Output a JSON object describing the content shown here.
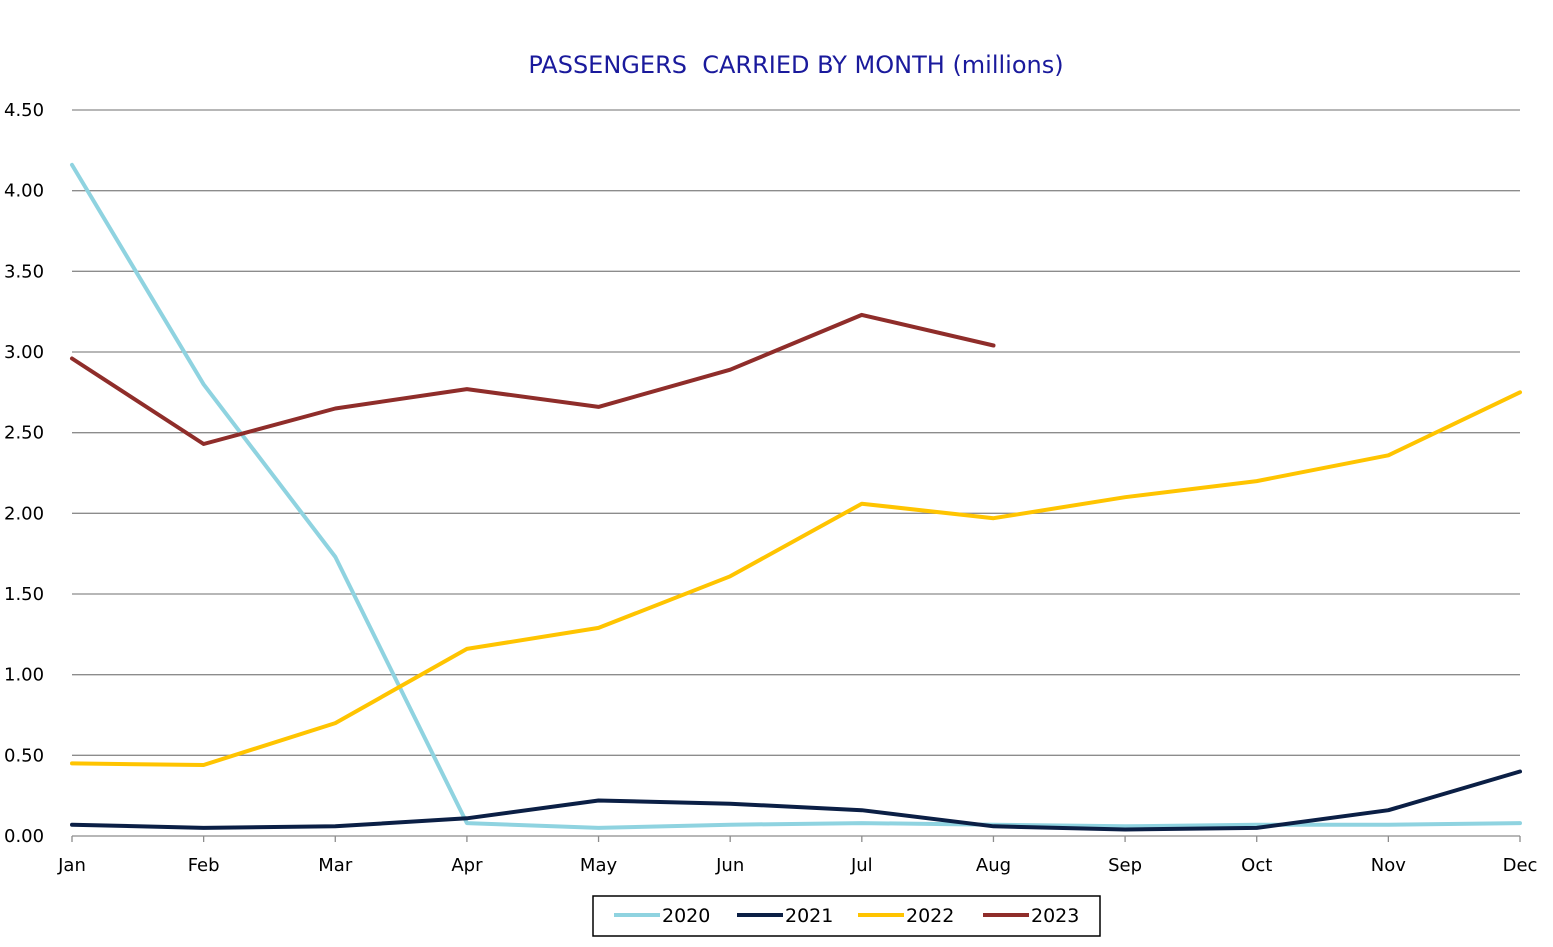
{
  "chart_data": {
    "type": "line",
    "title": "PASSENGERS  CARRIED BY MONTH (millions)",
    "xlabel": "",
    "ylabel": "",
    "categories": [
      "Jan",
      "Feb",
      "Mar",
      "Apr",
      "May",
      "Jun",
      "Jul",
      "Aug",
      "Sep",
      "Oct",
      "Nov",
      "Dec"
    ],
    "ylim": [
      0,
      4.5
    ],
    "yticks": [
      "0.00",
      "0.50",
      "1.00",
      "1.50",
      "2.00",
      "2.50",
      "3.00",
      "3.50",
      "4.00",
      "4.50"
    ],
    "grid": true,
    "legend_position": "bottom",
    "series": [
      {
        "name": "2020",
        "color": "#8fd3e0",
        "values": [
          4.16,
          2.8,
          1.73,
          0.08,
          0.05,
          0.07,
          0.08,
          0.07,
          0.06,
          0.07,
          0.07,
          0.08
        ]
      },
      {
        "name": "2021",
        "color": "#0b1f45",
        "values": [
          0.07,
          0.05,
          0.06,
          0.11,
          0.22,
          0.2,
          0.16,
          0.06,
          0.04,
          0.05,
          0.16,
          0.4
        ]
      },
      {
        "name": "2022",
        "color": "#ffc400",
        "values": [
          0.45,
          0.44,
          0.7,
          1.16,
          1.29,
          1.61,
          2.06,
          1.97,
          2.1,
          2.2,
          2.36,
          2.75
        ]
      },
      {
        "name": "2023",
        "color": "#8f2d2a",
        "values": [
          2.96,
          2.43,
          2.65,
          2.77,
          2.66,
          2.89,
          3.23,
          3.04,
          null,
          null,
          null,
          null
        ]
      }
    ]
  }
}
